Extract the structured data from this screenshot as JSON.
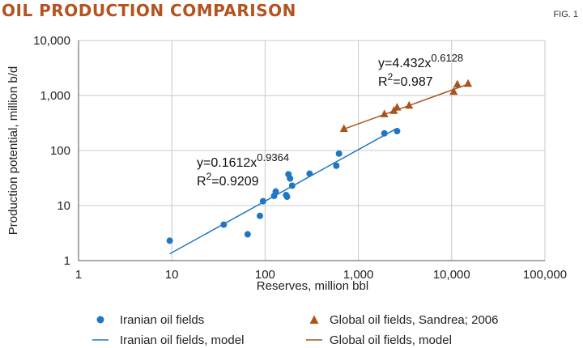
{
  "header": {
    "title": "OIL PRODUCTION COMPARISON",
    "fig_label": "FIG. 1"
  },
  "chart_data": {
    "type": "scatter",
    "xscale": "log",
    "yscale": "log",
    "xlim": [
      1,
      100000
    ],
    "ylim": [
      1,
      10000
    ],
    "xlabel": "Reserves, million bbl",
    "ylabel": "Production potential, million b/d",
    "xticks": [
      "1",
      "10",
      "100",
      "1,000",
      "10,000",
      "100,000"
    ],
    "yticks": [
      "1",
      "10",
      "100",
      "1,000",
      "10,000"
    ],
    "grid": true,
    "series": [
      {
        "name": "Iranian oil fields",
        "marker": "circle",
        "color": "#1f77c4",
        "points": [
          [
            9.5,
            2.3
          ],
          [
            36,
            4.5
          ],
          [
            65,
            3.0
          ],
          [
            88,
            6.5
          ],
          [
            95,
            12
          ],
          [
            125,
            15
          ],
          [
            130,
            18
          ],
          [
            168,
            15.5
          ],
          [
            172,
            14.5
          ],
          [
            178,
            37
          ],
          [
            185,
            31
          ],
          [
            195,
            23
          ],
          [
            300,
            38
          ],
          [
            580,
            53
          ],
          [
            620,
            88
          ],
          [
            1900,
            205
          ],
          [
            2600,
            225
          ]
        ]
      },
      {
        "name": "Global oil fields, Sandrea; 2006",
        "marker": "triangle",
        "color": "#a8541c",
        "points": [
          [
            700,
            250
          ],
          [
            1900,
            460
          ],
          [
            2400,
            530
          ],
          [
            2600,
            610
          ],
          [
            3500,
            660
          ],
          [
            10500,
            1180
          ],
          [
            11500,
            1600
          ],
          [
            15000,
            1650
          ]
        ]
      }
    ],
    "models": [
      {
        "name": "Iranian oil fields, model",
        "color": "#1f77c4",
        "coef": 0.1612,
        "exp": 0.9364,
        "xrange": [
          9.5,
          2600
        ],
        "eq_prefix": "y=0.1612x",
        "eq_exp": "0.9364",
        "r2_prefix": "R",
        "r2_sup": "2",
        "r2_value": "=0.9209"
      },
      {
        "name": "Global oil fields, model",
        "color": "#a8541c",
        "coef": 4.432,
        "exp": 0.6128,
        "xrange": [
          700,
          15000
        ],
        "eq_prefix": "y=4.432x",
        "eq_exp": "0.6128",
        "r2_prefix": "R",
        "r2_sup": "2",
        "r2_value": "=0.987"
      }
    ],
    "legend": {
      "placement": "bottom",
      "entries": [
        "Iranian oil fields",
        "Global oil fields, Sandrea; 2006",
        "Iranian oil fields, model",
        "Global oil fields, model"
      ]
    }
  }
}
